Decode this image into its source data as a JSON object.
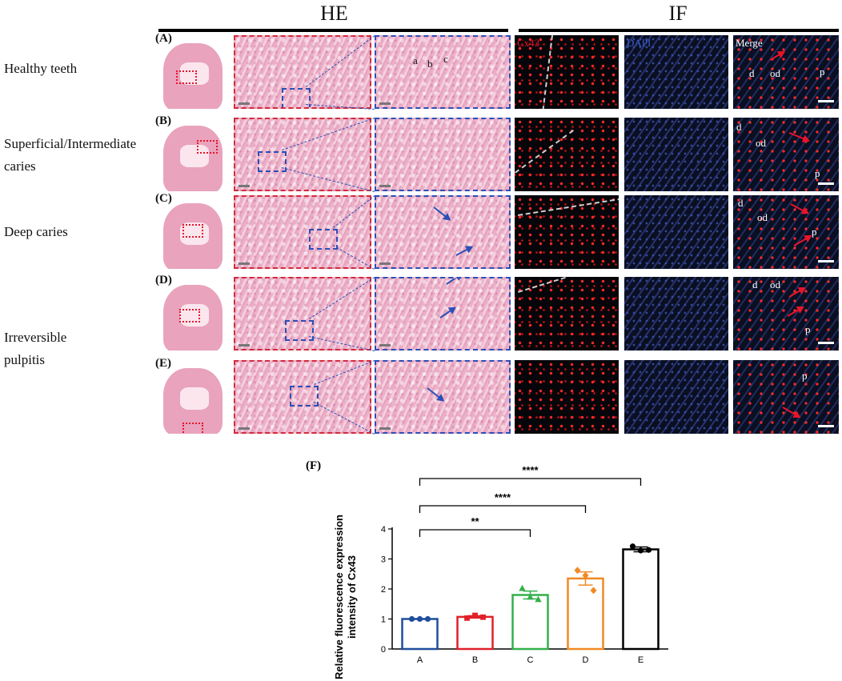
{
  "headers": {
    "he": "HE",
    "if": "IF"
  },
  "row_labels": [
    "Healthy teeth",
    "Superficial/Intermediate\ncaries",
    "Deep caries",
    "Irreversible\npulpitis"
  ],
  "panel_letters": [
    "(A)",
    "(B)",
    "(C)",
    "(D)",
    "(E)"
  ],
  "if_channels": {
    "red": "Cx43",
    "blue": "DAPI",
    "merge": "Merge"
  },
  "tissue_labels": {
    "a": "a",
    "b": "b",
    "c": "c",
    "d": "d",
    "od": "od",
    "p": "p"
  },
  "chart_panel_label": "(F)",
  "colors": {
    "he_border": "#d22b3c",
    "zoom_border": "#2a4fb7",
    "red_arrow": "#e8142a",
    "blue_arrow": "#2a4fb7"
  },
  "chart_data": {
    "type": "bar",
    "title": "",
    "xlabel": "",
    "ylabel": "Relative fluorescence expression intensity of Cx43",
    "categories": [
      "A",
      "B",
      "C",
      "D",
      "E"
    ],
    "values": [
      1.0,
      1.07,
      1.8,
      2.35,
      3.32
    ],
    "errors": [
      0.01,
      0.04,
      0.13,
      0.22,
      0.08
    ],
    "points": [
      [
        1.0,
        1.0,
        1.0
      ],
      [
        1.03,
        1.12,
        1.06
      ],
      [
        2.02,
        1.73,
        1.65
      ],
      [
        2.62,
        2.45,
        1.95
      ],
      [
        3.42,
        3.28,
        3.3
      ]
    ],
    "bar_colors": [
      "#1f4e9c",
      "#e0202a",
      "#33b04a",
      "#f08a24",
      "#000000"
    ],
    "marker_shapes": [
      "circle",
      "square",
      "triangle",
      "diamond",
      "circle"
    ],
    "ylim": [
      0,
      4
    ],
    "yticks": [
      0,
      1,
      2,
      3,
      4
    ],
    "significance": [
      {
        "from": "A",
        "to": "C",
        "label": "**"
      },
      {
        "from": "A",
        "to": "D",
        "label": "****"
      },
      {
        "from": "A",
        "to": "E",
        "label": "****"
      }
    ],
    "grid": false
  }
}
